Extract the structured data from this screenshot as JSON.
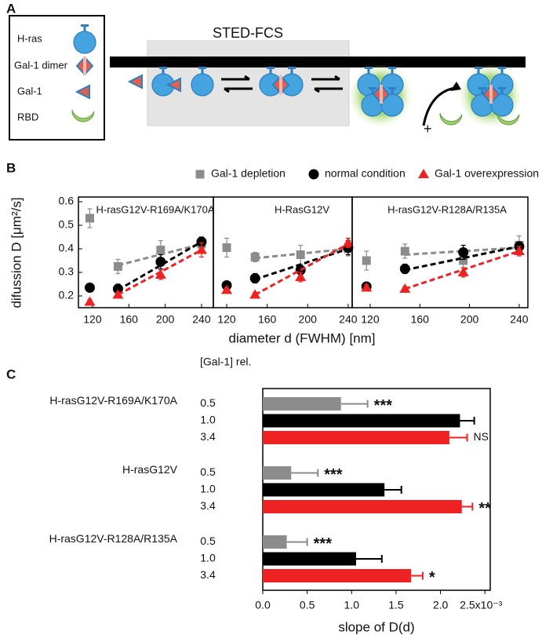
{
  "panel_labels": [
    "A",
    "B",
    "C"
  ],
  "diagram": {
    "title": "STED-FCS",
    "legend": [
      "H-ras",
      "Gal-1 dimer",
      "Gal-1",
      "RBD"
    ],
    "plus": "+"
  },
  "chart_data": [
    {
      "type": "scatter",
      "title": "H-rasG12V-R169A/K170A",
      "ylabel": "difussion D [μm²/s]",
      "xlim": [
        104.5,
        253
      ],
      "ylim": [
        0.15,
        0.62
      ],
      "xticks": [
        120,
        160,
        200,
        240
      ],
      "yticks": [
        0.2,
        0.3,
        0.4,
        0.5,
        0.6
      ],
      "series": [
        {
          "name": "Gal-1 depletion",
          "color": "#8c8c8c",
          "marker": "square",
          "x": [
            117,
            148,
            195,
            240
          ],
          "values": [
            0.53,
            0.325,
            0.395,
            0.42
          ],
          "errors": [
            0.04,
            0.03,
            0.04,
            0.03
          ],
          "fit": {
            "x": [
              148,
              240
            ],
            "values": [
              0.33,
              0.42
            ]
          }
        },
        {
          "name": "normal condition",
          "color": "#000000",
          "marker": "circle",
          "x": [
            117,
            148,
            195,
            240
          ],
          "values": [
            0.235,
            0.23,
            0.345,
            0.43
          ],
          "errors": [
            0.01,
            0.02,
            0.03,
            0.02
          ],
          "fit": {
            "x": [
              148,
              240
            ],
            "values": [
              0.225,
              0.43
            ]
          }
        },
        {
          "name": "Gal-1 overexpression",
          "color": "#ee2222",
          "marker": "triangle",
          "x": [
            117,
            148,
            195,
            240
          ],
          "values": [
            0.175,
            0.205,
            0.29,
            0.395
          ],
          "errors": [
            0.01,
            0.01,
            0.02,
            0.03
          ],
          "fit": {
            "x": [
              148,
              240
            ],
            "values": [
              0.205,
              0.395
            ]
          }
        }
      ]
    },
    {
      "type": "scatter",
      "title": "H-RasG12V",
      "xlabel": "diameter d (FWHM) [nm]",
      "xlim": [
        106.8,
        244
      ],
      "ylim": [
        0.15,
        0.62
      ],
      "xticks": [
        120,
        160,
        200,
        240
      ],
      "series": [
        {
          "color": "#8c8c8c",
          "marker": "square",
          "x": [
            120,
            148,
            193,
            240
          ],
          "values": [
            0.405,
            0.365,
            0.375,
            0.4
          ],
          "errors": [
            0.04,
            0.02,
            0.04,
            0.03
          ],
          "fit": {
            "x": [
              148,
              240
            ],
            "values": [
              0.36,
              0.4
            ]
          }
        },
        {
          "color": "#000000",
          "marker": "circle",
          "x": [
            120,
            148,
            193,
            240
          ],
          "values": [
            0.245,
            0.275,
            0.31,
            0.405
          ],
          "errors": [
            0.01,
            0.02,
            0.02,
            0.03
          ],
          "fit": {
            "x": [
              148,
              240
            ],
            "values": [
              0.27,
              0.4
            ]
          }
        },
        {
          "color": "#ee2222",
          "marker": "triangle",
          "x": [
            120,
            148,
            193,
            240
          ],
          "values": [
            0.225,
            0.205,
            0.28,
            0.425
          ],
          "errors": [
            0.01,
            0.01,
            0.02,
            0.02
          ],
          "fit": {
            "x": [
              148,
              240
            ],
            "values": [
              0.205,
              0.42
            ]
          }
        }
      ]
    },
    {
      "type": "scatter",
      "title": "H-rasG12V-R128A/R135A",
      "xlim": [
        105.5,
        247
      ],
      "ylim": [
        0.15,
        0.62
      ],
      "xticks": [
        120,
        160,
        200,
        240
      ],
      "series": [
        {
          "color": "#8c8c8c",
          "marker": "square",
          "x": [
            117,
            148,
            195,
            240
          ],
          "values": [
            0.35,
            0.39,
            0.35,
            0.415
          ],
          "errors": [
            0.04,
            0.03,
            0.03,
            0.04
          ],
          "fit": {
            "x": [
              148,
              240
            ],
            "values": [
              0.375,
              0.405
            ]
          }
        },
        {
          "color": "#000000",
          "marker": "circle",
          "x": [
            117,
            148,
            195,
            240
          ],
          "values": [
            0.24,
            0.315,
            0.385,
            0.41
          ],
          "errors": [
            0.01,
            0.02,
            0.03,
            0.02
          ],
          "fit": {
            "x": [
              148,
              240
            ],
            "values": [
              0.31,
              0.41
            ]
          }
        },
        {
          "color": "#ee2222",
          "marker": "triangle",
          "x": [
            117,
            148,
            195,
            240
          ],
          "values": [
            0.235,
            0.23,
            0.3,
            0.39
          ],
          "errors": [
            0.01,
            0.01,
            0.02,
            0.02
          ],
          "fit": {
            "x": [
              148,
              240
            ],
            "values": [
              0.23,
              0.39
            ]
          }
        }
      ]
    },
    {
      "type": "hbar",
      "legend_title": "[Gal-1] rel.",
      "xlabel": "slope of D(d)",
      "categories": [
        "H-rasG12V-R169A/K170A",
        "H-rasG12V",
        "H-rasG12V-R128A/R135A"
      ],
      "xlim": [
        0,
        2.56
      ],
      "xticks": [
        {
          "value": 0,
          "label": "0.0"
        },
        0.5,
        {
          "value": 1,
          "label": "1.0"
        },
        1.5,
        {
          "value": 2,
          "label": "2.0"
        },
        {
          "value": 2.5,
          "label": "2.5x10⁻³"
        }
      ],
      "series": [
        {
          "name": "0.5",
          "color": "#8c8c8c",
          "values": [
            0.88,
            0.32,
            0.27
          ],
          "errors": [
            0.3,
            0.3,
            0.23
          ],
          "significance": [
            "***",
            "***",
            "***"
          ]
        },
        {
          "name": "1.0",
          "color": "#000000",
          "values": [
            2.22,
            1.37,
            1.05
          ],
          "errors": [
            0.16,
            0.19,
            0.29
          ]
        },
        {
          "name": "3.4",
          "color": "#ee2222",
          "values": [
            2.1,
            2.24,
            1.67
          ],
          "errors": [
            0.2,
            0.12,
            0.13
          ],
          "significance": [
            "NS",
            "**",
            "*"
          ]
        }
      ]
    }
  ]
}
